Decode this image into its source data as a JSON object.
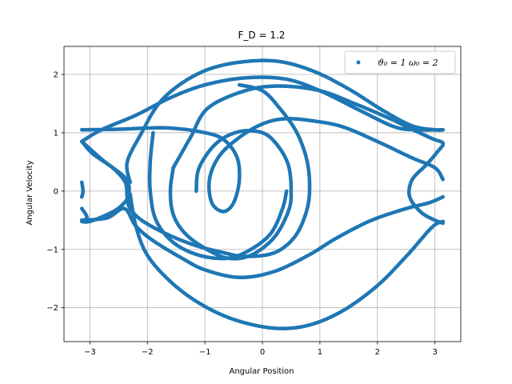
{
  "chart_data": {
    "type": "scatter",
    "title": "F_D = 1.2",
    "xlabel": "Angular Position",
    "ylabel": "Angular Velocity",
    "xlim": [
      -3.45,
      3.45
    ],
    "ylim": [
      -2.58,
      2.48
    ],
    "xticks": [
      -3,
      -2,
      -1,
      0,
      1,
      2,
      3
    ],
    "xtick_labels": [
      "−3",
      "−2",
      "−1",
      "0",
      "1",
      "2",
      "3"
    ],
    "yticks": [
      -2,
      -1,
      0,
      1,
      2
    ],
    "ytick_labels": [
      "−2",
      "−1",
      "0",
      "1",
      "2"
    ],
    "grid": true,
    "legend_position": "top-right",
    "series": [
      {
        "name": "ϑ₀ = 1 ω₀ = 2",
        "color": "#1f77b4",
        "curves": [
          [
            [
              -3.14,
              1.05
            ],
            [
              -2.5,
              1.06
            ],
            [
              -2.0,
              1.08
            ],
            [
              -1.6,
              1.08
            ],
            [
              -1.1,
              1.02
            ],
            [
              -0.7,
              0.9
            ],
            [
              -0.45,
              0.6
            ],
            [
              -0.4,
              0.2
            ],
            [
              -0.5,
              -0.2
            ],
            [
              -0.68,
              -0.35
            ],
            [
              -0.88,
              -0.2
            ],
            [
              -0.92,
              0.2
            ],
            [
              -0.75,
              0.6
            ],
            [
              -0.4,
              0.92
            ],
            [
              0.0,
              1.15
            ],
            [
              0.4,
              1.24
            ],
            [
              0.9,
              1.2
            ],
            [
              1.4,
              1.1
            ],
            [
              2.0,
              0.85
            ],
            [
              2.6,
              0.57
            ],
            [
              3.0,
              0.4
            ],
            [
              3.14,
              0.2
            ]
          ],
          [
            [
              -3.14,
              0.85
            ],
            [
              -2.95,
              0.64
            ],
            [
              -2.6,
              0.4
            ],
            [
              -2.35,
              0.18
            ],
            [
              -2.33,
              -0.08
            ],
            [
              -2.45,
              -0.25
            ],
            [
              -2.65,
              -0.38
            ],
            [
              -3.0,
              -0.52
            ],
            [
              -3.14,
              -0.52
            ]
          ],
          [
            [
              -3.14,
              0.85
            ],
            [
              -2.8,
              1.05
            ],
            [
              -2.2,
              1.3
            ],
            [
              -1.6,
              1.6
            ],
            [
              -1.0,
              1.82
            ],
            [
              -0.3,
              1.94
            ],
            [
              0.4,
              1.92
            ],
            [
              1.0,
              1.72
            ],
            [
              1.7,
              1.38
            ],
            [
              2.3,
              1.1
            ],
            [
              2.7,
              1.05
            ],
            [
              3.14,
              1.05
            ]
          ],
          [
            [
              -3.14,
              0.85
            ],
            [
              -2.8,
              0.55
            ],
            [
              -2.55,
              0.35
            ],
            [
              -2.38,
              0.14
            ],
            [
              -2.35,
              -0.12
            ],
            [
              -2.3,
              -0.3
            ],
            [
              -2.1,
              -0.5
            ],
            [
              -1.7,
              -0.72
            ],
            [
              -1.2,
              -0.92
            ],
            [
              -0.7,
              -1.05
            ],
            [
              -0.3,
              -1.12
            ],
            [
              0.2,
              -1.06
            ],
            [
              0.55,
              -0.8
            ],
            [
              0.75,
              -0.4
            ],
            [
              0.82,
              0.0
            ],
            [
              0.78,
              0.5
            ],
            [
              0.6,
              1.0
            ],
            [
              0.3,
              1.42
            ],
            [
              0.0,
              1.72
            ],
            [
              -0.4,
              1.82
            ]
          ],
          [
            [
              -3.14,
              0.15
            ],
            [
              -3.12,
              0.0
            ],
            [
              -3.14,
              -0.1
            ]
          ],
          [
            [
              -1.55,
              0.4
            ],
            [
              -1.25,
              0.92
            ],
            [
              -0.95,
              1.42
            ],
            [
              -0.3,
              1.72
            ],
            [
              0.3,
              1.8
            ],
            [
              1.0,
              1.72
            ],
            [
              1.6,
              1.5
            ],
            [
              2.2,
              1.25
            ],
            [
              2.6,
              1.06
            ],
            [
              2.95,
              0.9
            ],
            [
              3.14,
              0.82
            ],
            [
              3.05,
              0.68
            ],
            [
              2.85,
              0.45
            ],
            [
              2.62,
              0.22
            ],
            [
              2.55,
              0.0
            ],
            [
              2.6,
              -0.18
            ],
            [
              2.78,
              -0.38
            ],
            [
              3.0,
              -0.5
            ],
            [
              3.14,
              -0.55
            ]
          ],
          [
            [
              -1.55,
              0.4
            ],
            [
              -1.6,
              0.0
            ],
            [
              -1.55,
              -0.4
            ],
            [
              -1.35,
              -0.72
            ],
            [
              -1.0,
              -0.98
            ],
            [
              -0.6,
              -1.15
            ],
            [
              -0.2,
              -1.1
            ],
            [
              0.2,
              -0.8
            ],
            [
              0.45,
              -0.35
            ],
            [
              0.5,
              0.0
            ],
            [
              0.45,
              0.45
            ],
            [
              0.25,
              0.8
            ],
            [
              0.0,
              1.0
            ],
            [
              -0.4,
              1.02
            ],
            [
              -0.8,
              0.82
            ],
            [
              -1.1,
              0.4
            ],
            [
              -1.15,
              0.0
            ]
          ],
          [
            [
              -3.14,
              -0.5
            ],
            [
              -2.7,
              -0.46
            ],
            [
              -2.4,
              -0.3
            ],
            [
              -2.2,
              -0.6
            ],
            [
              -1.9,
              -0.85
            ],
            [
              -1.4,
              -1.15
            ],
            [
              -1.0,
              -1.35
            ],
            [
              -0.4,
              -1.48
            ],
            [
              0.2,
              -1.38
            ],
            [
              0.8,
              -1.1
            ],
            [
              1.3,
              -0.8
            ],
            [
              1.9,
              -0.5
            ],
            [
              2.5,
              -0.3
            ],
            [
              2.9,
              -0.2
            ],
            [
              3.14,
              -0.1
            ]
          ],
          [
            [
              -2.3,
              -0.05
            ],
            [
              -2.2,
              -0.6
            ],
            [
              -2.0,
              -1.1
            ],
            [
              -1.6,
              -1.55
            ],
            [
              -1.1,
              -1.92
            ],
            [
              -0.5,
              -2.2
            ],
            [
              0.2,
              -2.35
            ],
            [
              0.8,
              -2.3
            ],
            [
              1.4,
              -2.05
            ],
            [
              2.0,
              -1.62
            ],
            [
              2.5,
              -1.12
            ],
            [
              2.95,
              -0.62
            ],
            [
              3.14,
              -0.52
            ]
          ],
          [
            [
              -2.3,
              0.15
            ],
            [
              -2.35,
              0.5
            ],
            [
              -2.1,
              1.0
            ],
            [
              -1.8,
              1.5
            ],
            [
              -1.4,
              1.85
            ],
            [
              -0.9,
              2.1
            ],
            [
              -0.3,
              2.22
            ],
            [
              0.3,
              2.22
            ],
            [
              0.9,
              2.05
            ],
            [
              1.5,
              1.75
            ],
            [
              2.1,
              1.38
            ],
            [
              2.6,
              1.12
            ],
            [
              3.0,
              1.05
            ],
            [
              3.14,
              1.05
            ]
          ],
          [
            [
              -3.14,
              -0.3
            ],
            [
              -3.05,
              -0.45
            ],
            [
              -3.14,
              -0.52
            ]
          ],
          [
            [
              -1.9,
              1.0
            ],
            [
              -1.95,
              0.5
            ],
            [
              -1.95,
              0.0
            ],
            [
              -1.85,
              -0.5
            ],
            [
              -1.55,
              -0.88
            ],
            [
              -1.1,
              -1.1
            ],
            [
              -0.6,
              -1.15
            ],
            [
              -0.2,
              -1.0
            ],
            [
              0.15,
              -0.72
            ],
            [
              0.35,
              -0.3
            ],
            [
              0.42,
              0.0
            ]
          ]
        ]
      }
    ]
  }
}
